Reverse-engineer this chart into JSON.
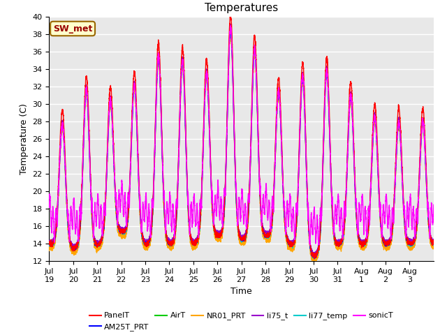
{
  "title": "Temperatures",
  "xlabel": "Time",
  "ylabel": "Temperature (C)",
  "ylim": [
    12,
    40
  ],
  "yticks": [
    12,
    14,
    16,
    18,
    20,
    22,
    24,
    26,
    28,
    30,
    32,
    34,
    36,
    38,
    40
  ],
  "series": [
    {
      "label": "PanelT",
      "color": "#ff0000",
      "lw": 1.0,
      "zorder": 5
    },
    {
      "label": "AM25T_PRT",
      "color": "#0000ff",
      "lw": 1.0,
      "zorder": 4
    },
    {
      "label": "AirT",
      "color": "#00cc00",
      "lw": 1.0,
      "zorder": 3
    },
    {
      "label": "NR01_PRT",
      "color": "#ffa500",
      "lw": 1.0,
      "zorder": 3
    },
    {
      "label": "li75_t",
      "color": "#9900cc",
      "lw": 1.0,
      "zorder": 3
    },
    {
      "label": "li77_temp",
      "color": "#00cccc",
      "lw": 1.0,
      "zorder": 3
    },
    {
      "label": "sonicT",
      "color": "#ff00ff",
      "lw": 1.0,
      "zorder": 6
    }
  ],
  "tick_labels": [
    "Jul 19",
    "Jul 20",
    "Jul 21",
    "Jul 22",
    "Jul 23",
    "Jul 24",
    "Jul 25",
    "Jul 26",
    "Jul 27",
    "Jul 28",
    "Jul 29",
    "Jul 30",
    "Jul 31",
    "Aug 1",
    "Aug 2",
    "Aug 3"
  ],
  "annotation_label": "SW_met",
  "background_color": "#ffffff",
  "grid_color": "#cccccc",
  "title_fontsize": 11,
  "label_fontsize": 9,
  "tick_fontsize": 8,
  "figsize": [
    6.4,
    4.8
  ],
  "dpi": 100,
  "day_peaks": [
    28,
    31.5,
    29.5,
    33,
    35.5,
    35,
    33,
    39,
    36,
    32,
    34,
    33,
    31,
    28.5,
    28,
    28
  ],
  "night_mins": [
    14,
    13.5,
    13.8,
    15.5,
    14,
    14,
    14,
    15,
    14.5,
    15,
    14,
    12.5,
    14,
    14,
    14,
    14
  ]
}
